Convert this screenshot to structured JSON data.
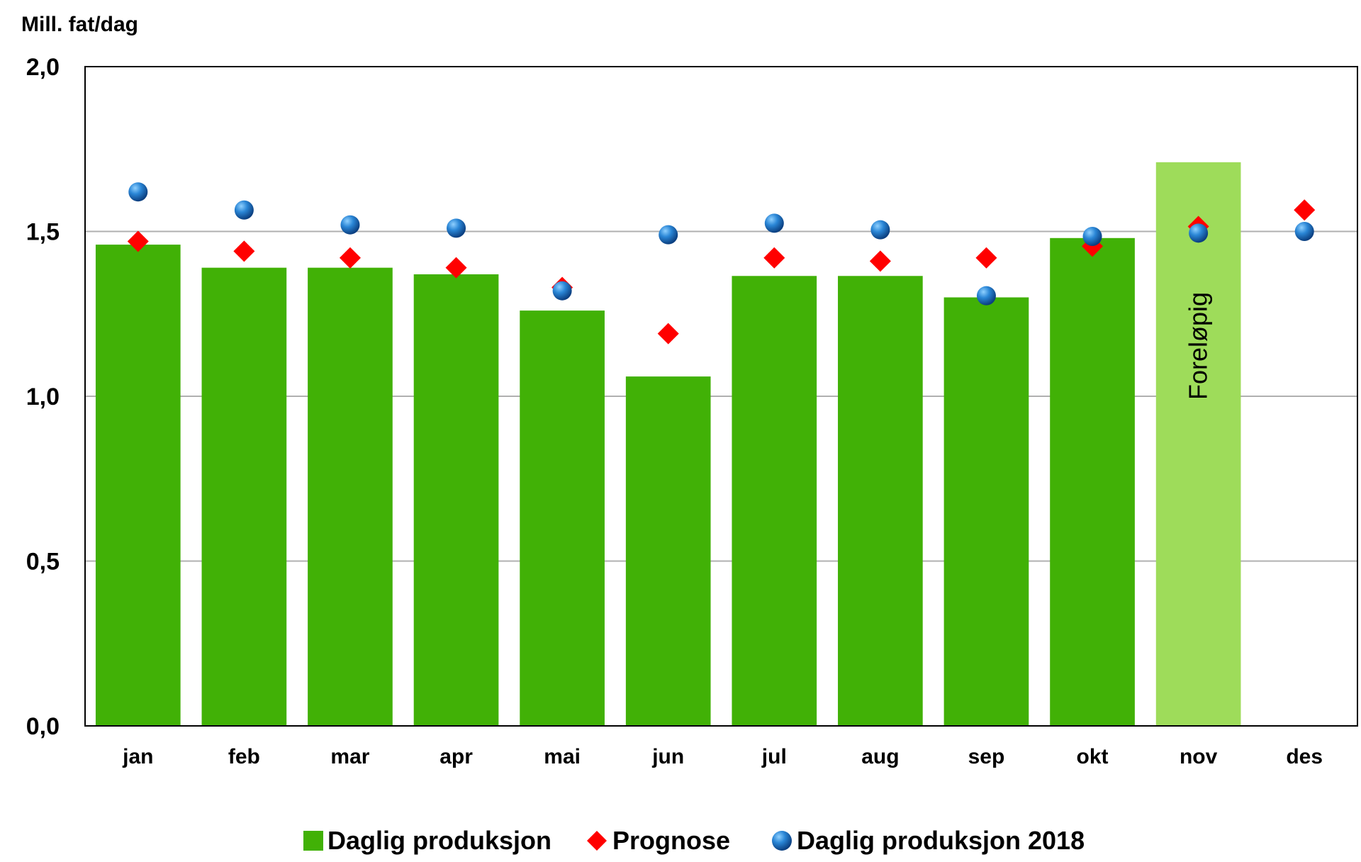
{
  "chart_data": {
    "type": "bar",
    "ylabel": "Mill. fat/dag",
    "ylim": [
      0,
      2.0
    ],
    "yticks": [
      "0,0",
      "0,5",
      "1,0",
      "1,5",
      "2,0"
    ],
    "ytick_values": [
      0,
      0.5,
      1.0,
      1.5,
      2.0
    ],
    "grid": true,
    "legend_position": "bottom",
    "categories": [
      "jan",
      "feb",
      "mar",
      "apr",
      "mai",
      "jun",
      "jul",
      "aug",
      "sep",
      "okt",
      "nov",
      "des"
    ],
    "series": [
      {
        "name": "Daglig produksjon",
        "kind": "bar",
        "color": "#41b106",
        "preliminary_color": "#9edc5a",
        "values": [
          1.46,
          1.39,
          1.39,
          1.37,
          1.26,
          1.06,
          1.365,
          1.365,
          1.3,
          1.48,
          1.71,
          null
        ]
      },
      {
        "name": "Prognose",
        "kind": "marker-diamond",
        "color": "#ff0000",
        "values": [
          1.47,
          1.44,
          1.42,
          1.39,
          1.33,
          1.19,
          1.42,
          1.41,
          1.42,
          1.455,
          1.515,
          1.565
        ]
      },
      {
        "name": "Daglig produksjon 2018",
        "kind": "marker-circle",
        "color": "#1f6fc2",
        "values": [
          1.62,
          1.565,
          1.52,
          1.51,
          1.32,
          1.49,
          1.525,
          1.505,
          1.305,
          1.485,
          1.495,
          1.5
        ]
      }
    ],
    "annotations": [
      {
        "category": "nov",
        "text": "Foreløpig"
      }
    ]
  }
}
